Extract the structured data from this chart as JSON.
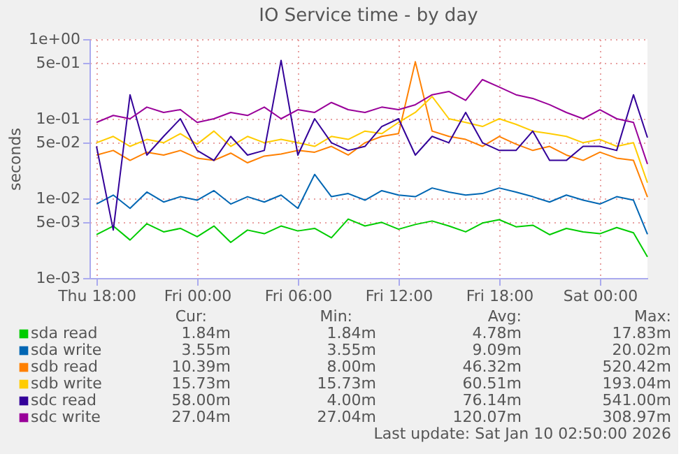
{
  "chart_data": {
    "type": "line",
    "title": "IO Service time - by day",
    "ylabel": "seconds",
    "log": "y",
    "grid": true,
    "legend": "bottom",
    "line_style": "solid",
    "x": [
      "2026-01-08T18:00",
      "2026-01-08T19:00",
      "2026-01-08T20:00",
      "2026-01-08T21:00",
      "2026-01-08T22:00",
      "2026-01-08T23:00",
      "2026-01-09T00:00",
      "2026-01-09T01:00",
      "2026-01-09T02:00",
      "2026-01-09T03:00",
      "2026-01-09T04:00",
      "2026-01-09T05:00",
      "2026-01-09T06:00",
      "2026-01-09T07:00",
      "2026-01-09T08:00",
      "2026-01-09T09:00",
      "2026-01-09T10:00",
      "2026-01-09T11:00",
      "2026-01-09T12:00",
      "2026-01-09T13:00",
      "2026-01-09T14:00",
      "2026-01-09T15:00",
      "2026-01-09T16:00",
      "2026-01-09T17:00",
      "2026-01-09T18:00",
      "2026-01-09T19:00",
      "2026-01-09T20:00",
      "2026-01-09T21:00",
      "2026-01-09T22:00",
      "2026-01-09T23:00",
      "2026-01-10T00:00",
      "2026-01-10T01:00",
      "2026-01-10T02:00",
      "2026-01-10T02:50"
    ],
    "xlim": [
      "2026-01-08T17:35",
      "2026-01-10T02:50"
    ],
    "xticks": [
      {
        "value": "2026-01-08T18:00",
        "label": "Thu 18:00"
      },
      {
        "value": "2026-01-09T00:00",
        "label": "Fri 00:00"
      },
      {
        "value": "2026-01-09T06:00",
        "label": "Fri 06:00"
      },
      {
        "value": "2026-01-09T12:00",
        "label": "Fri 12:00"
      },
      {
        "value": "2026-01-09T18:00",
        "label": "Fri 18:00"
      },
      {
        "value": "2026-01-10T00:00",
        "label": "Sat 00:00"
      }
    ],
    "ylim": [
      0.001,
      1
    ],
    "yticks": [
      {
        "value": 0.001,
        "label": "1e-03"
      },
      {
        "value": 0.005,
        "label": "5e-03"
      },
      {
        "value": 0.01,
        "label": "1e-02"
      },
      {
        "value": 0.05,
        "label": "5e-02"
      },
      {
        "value": 0.1,
        "label": "1e-01"
      },
      {
        "value": 0.5,
        "label": "5e-01"
      },
      {
        "value": 1,
        "label": "1e+00"
      }
    ],
    "series": [
      {
        "name": "sda read",
        "color": "#00cc00",
        "values": [
          0.0035,
          0.0045,
          0.003,
          0.0048,
          0.0038,
          0.0042,
          0.0033,
          0.0045,
          0.0028,
          0.004,
          0.0036,
          0.0045,
          0.0039,
          0.0042,
          0.0032,
          0.0055,
          0.0045,
          0.005,
          0.0041,
          0.0047,
          0.0052,
          0.0045,
          0.0038,
          0.0049,
          0.0054,
          0.0044,
          0.0046,
          0.0035,
          0.0042,
          0.0038,
          0.0036,
          0.0043,
          0.0037,
          0.00184
        ]
      },
      {
        "name": "sda write",
        "color": "#0066b3",
        "values": [
          0.0085,
          0.011,
          0.0075,
          0.012,
          0.009,
          0.0105,
          0.0095,
          0.0125,
          0.0085,
          0.0105,
          0.009,
          0.011,
          0.0075,
          0.02,
          0.0105,
          0.0115,
          0.0095,
          0.0125,
          0.011,
          0.0105,
          0.0135,
          0.012,
          0.011,
          0.0115,
          0.0135,
          0.012,
          0.0105,
          0.009,
          0.011,
          0.0095,
          0.0085,
          0.0105,
          0.0095,
          0.00355
        ]
      },
      {
        "name": "sdb read",
        "color": "#ff8000",
        "values": [
          0.035,
          0.04,
          0.03,
          0.038,
          0.035,
          0.04,
          0.032,
          0.03,
          0.037,
          0.028,
          0.034,
          0.036,
          0.04,
          0.038,
          0.045,
          0.035,
          0.05,
          0.06,
          0.065,
          0.52,
          0.07,
          0.06,
          0.055,
          0.045,
          0.06,
          0.048,
          0.04,
          0.045,
          0.035,
          0.03,
          0.038,
          0.032,
          0.03,
          0.0104
        ]
      },
      {
        "name": "sdb write",
        "color": "#ffcc00",
        "values": [
          0.05,
          0.06,
          0.045,
          0.055,
          0.05,
          0.065,
          0.048,
          0.07,
          0.045,
          0.06,
          0.05,
          0.055,
          0.05,
          0.045,
          0.06,
          0.055,
          0.07,
          0.065,
          0.09,
          0.12,
          0.19,
          0.1,
          0.09,
          0.08,
          0.1,
          0.085,
          0.07,
          0.065,
          0.06,
          0.05,
          0.055,
          0.045,
          0.05,
          0.0157
        ]
      },
      {
        "name": "sdc read",
        "color": "#330099",
        "values": [
          0.045,
          0.004,
          0.2,
          0.035,
          0.06,
          0.1,
          0.04,
          0.03,
          0.06,
          0.035,
          0.04,
          0.541,
          0.035,
          0.1,
          0.05,
          0.04,
          0.045,
          0.08,
          0.1,
          0.035,
          0.06,
          0.05,
          0.12,
          0.05,
          0.04,
          0.04,
          0.07,
          0.03,
          0.03,
          0.045,
          0.045,
          0.04,
          0.2,
          0.058
        ]
      },
      {
        "name": "sdc write",
        "color": "#990099",
        "values": [
          0.09,
          0.11,
          0.1,
          0.14,
          0.12,
          0.13,
          0.09,
          0.1,
          0.12,
          0.11,
          0.14,
          0.1,
          0.13,
          0.12,
          0.16,
          0.13,
          0.12,
          0.14,
          0.13,
          0.15,
          0.2,
          0.22,
          0.17,
          0.31,
          0.25,
          0.2,
          0.18,
          0.15,
          0.12,
          0.1,
          0.13,
          0.1,
          0.09,
          0.027
        ]
      }
    ],
    "annotations": [
      "Cur:",
      "Min:",
      "Avg:",
      "Max:",
      "1.84m",
      "1.84m",
      "4.78m",
      "17.83m",
      "3.55m",
      "3.55m",
      "9.09m",
      "20.02m",
      "10.39m",
      "8.00m",
      "46.32m",
      "520.42m",
      "15.73m",
      "15.73m",
      "60.51m",
      "193.04m",
      "58.00m",
      "4.00m",
      "76.14m",
      "541.00m",
      "27.04m",
      "27.04m",
      "120.07m",
      "308.97m",
      "Last update: Sat Jan 10 02:50:00 2026"
    ]
  }
}
